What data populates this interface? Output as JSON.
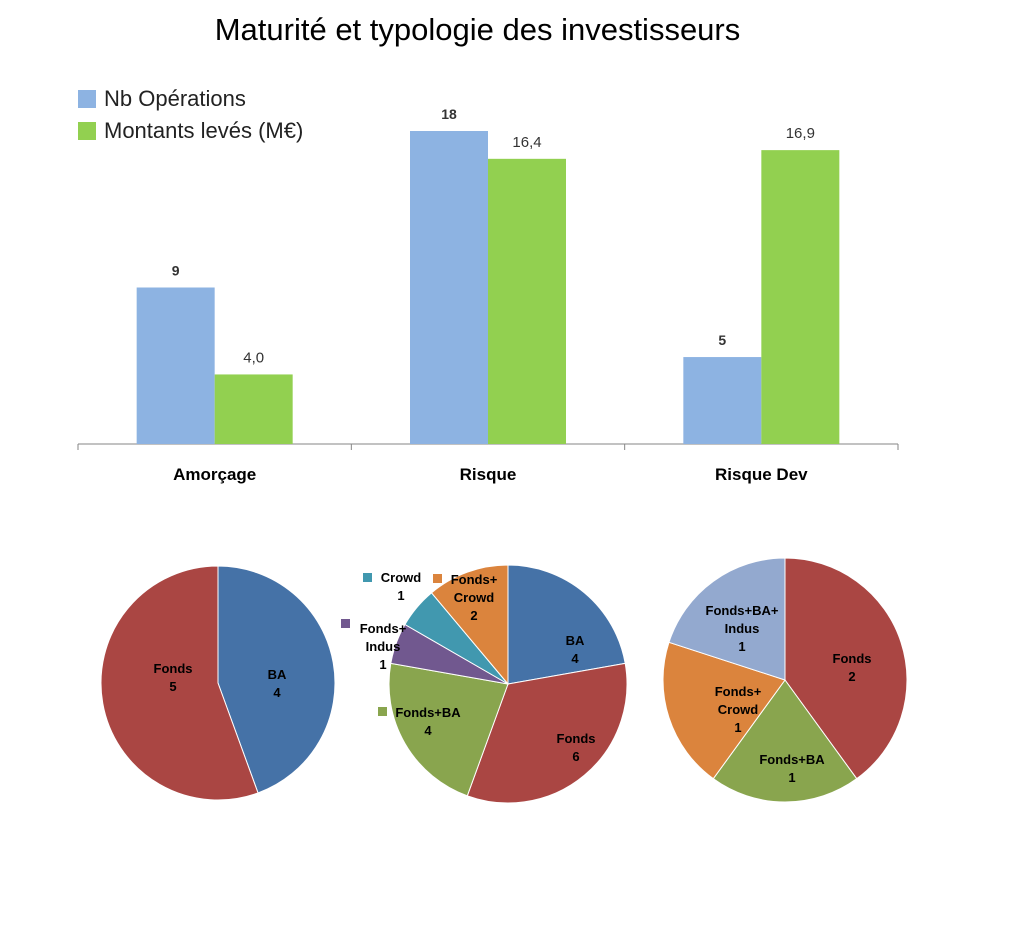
{
  "title": "Maturité et typologie des investisseurs",
  "legend": {
    "ops_label": "Nb Opérations",
    "montants_label": "Montants levés (M€)"
  },
  "colors": {
    "ops": "#8db3e2",
    "montants": "#92d050",
    "BA": "#4572a7",
    "Fonds": "#aa4643",
    "Fonds+BA": "#89a54e",
    "Fonds+Indus": "#71588f",
    "Crowd": "#4198af",
    "Fonds+Crowd": "#db843d",
    "Fonds+BA+Indus": "#93a9cf"
  },
  "chart_data": [
    {
      "type": "bar",
      "title": "Maturité et typologie des investisseurs",
      "categories": [
        "Amorçage",
        "Risque",
        "Risque Dev"
      ],
      "series": [
        {
          "name": "Nb Opérations",
          "values": [
            9,
            18,
            5
          ],
          "labels": [
            "9",
            "18",
            "5"
          ]
        },
        {
          "name": "Montants levés (M€)",
          "values": [
            4.0,
            16.4,
            16.9
          ],
          "labels": [
            "4,0",
            "16,4",
            "16,9"
          ]
        }
      ],
      "legend_position": "top-left",
      "grid": false
    },
    {
      "type": "pie",
      "slices": [
        {
          "key": "BA",
          "label": "BA",
          "value": 4
        },
        {
          "key": "Fonds",
          "label": "Fonds",
          "value": 5
        }
      ]
    },
    {
      "type": "pie",
      "slices": [
        {
          "key": "BA",
          "label": "BA",
          "value": 4
        },
        {
          "key": "Fonds",
          "label": "Fonds",
          "value": 6
        },
        {
          "key": "Fonds+BA",
          "label": "Fonds+BA",
          "value": 4
        },
        {
          "key": "Fonds+Indus",
          "label": "Fonds+\nIndus",
          "value": 1
        },
        {
          "key": "Crowd",
          "label": "Crowd",
          "value": 1
        },
        {
          "key": "Fonds+Crowd",
          "label": "Fonds+\nCrowd",
          "value": 2
        }
      ]
    },
    {
      "type": "pie",
      "slices": [
        {
          "key": "Fonds",
          "label": "Fonds",
          "value": 2
        },
        {
          "key": "Fonds+BA",
          "label": "Fonds+BA",
          "value": 1
        },
        {
          "key": "Fonds+Crowd",
          "label": "Fonds+\nCrowd",
          "value": 1
        },
        {
          "key": "Fonds+BA+Indus",
          "label": "Fonds+BA+\nIndus",
          "value": 1
        }
      ]
    }
  ]
}
